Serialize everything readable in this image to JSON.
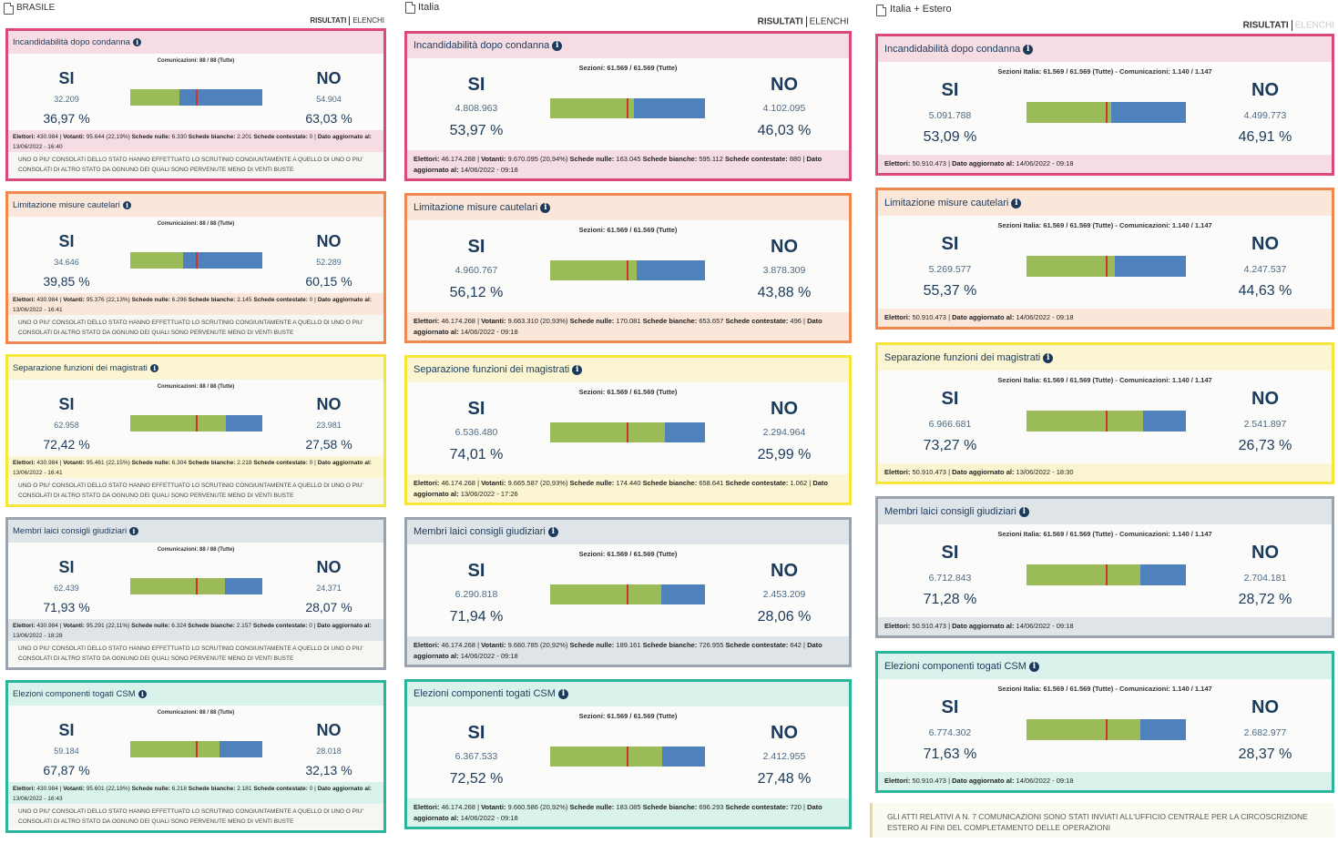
{
  "colors": {
    "incandidabilita": {
      "border": "#d9497a",
      "head": "#f6dde4"
    },
    "limitazione": {
      "border": "#f0884d",
      "head": "#fbe6da"
    },
    "separazione": {
      "border": "#f5e63c",
      "head": "#fbf6d1"
    },
    "membri": {
      "border": "#9aa3ab",
      "head": "#dfe4e8"
    },
    "elezioni": {
      "border": "#2bb59b",
      "head": "#d9f3ec"
    },
    "bar_si": "#9bbb59",
    "bar_no": "#4f81bd",
    "bar_mark": "#d0312d",
    "text": "#1b3a5c"
  },
  "tabs": {
    "risultati": "RISULTATI",
    "elenchi": "ELENCHI"
  },
  "labels": {
    "si": "SI",
    "no": "NO",
    "info_icon": "info-icon",
    "doc_icon": "document-icon"
  },
  "columns": [
    {
      "region": "BRASILE",
      "cards": [
        {
          "key": "incandidabilita",
          "title": "Incandidabilità dopo condanna",
          "comm": "Comunicazioni: 88 / 88 (Tutte)",
          "si_votes": "32.209",
          "si_pct": "36,97 %",
          "no_votes": "54.904",
          "no_pct": "63,03 %",
          "si_fraction": 0.3697,
          "elettori_label": "Elettori:",
          "elettori": "430.984",
          "votanti_label": "Votanti:",
          "votanti": "95.644 (22,19%)",
          "nulle_label": "Schede nulle:",
          "nulle": "6.330",
          "bianche_label": "Schede bianche:",
          "bianche": "2.201",
          "contestate_label": "Schede contestate:",
          "contestate": "0",
          "dato_label": "Dato aggiornato al:",
          "dato": "13/06/2022 - 16:40",
          "note": "UNO O PIU' CONSOLATI DELLO STATO HANNO EFFETTUATO LO SCRUTINIO CONGIUNTAMENTE A QUELLO DI UNO O PIU' CONSOLATI DI ALTRO STATO DA OGNUNO DEI QUALI SONO PERVENUTE MENO DI VENTI BUSTE"
        },
        {
          "key": "limitazione",
          "title": "Limitazione misure cautelari",
          "comm": "Comunicazioni: 88 / 88 (Tutte)",
          "si_votes": "34.646",
          "si_pct": "39,85 %",
          "no_votes": "52.289",
          "no_pct": "60,15 %",
          "si_fraction": 0.3985,
          "elettori_label": "Elettori:",
          "elettori": "430.984",
          "votanti_label": "Votanti:",
          "votanti": "95.376 (22,13%)",
          "nulle_label": "Schede nulle:",
          "nulle": "6.296",
          "bianche_label": "Schede bianche:",
          "bianche": "2.145",
          "contestate_label": "Schede contestate:",
          "contestate": "0",
          "dato_label": "Dato aggiornato al:",
          "dato": "13/06/2022 - 16:41",
          "note": "UNO O PIU' CONSOLATI DELLO STATO HANNO EFFETTUATO LO SCRUTINIO CONGIUNTAMENTE A QUELLO DI UNO O PIU' CONSOLATI DI ALTRO STATO DA OGNUNO DEI QUALI SONO PERVENUTE MENO DI VENTI BUSTE"
        },
        {
          "key": "separazione",
          "title": "Separazione funzioni dei magistrati",
          "comm": "Comunicazioni: 88 / 88 (Tutte)",
          "si_votes": "62.958",
          "si_pct": "72,42 %",
          "no_votes": "23.981",
          "no_pct": "27,58 %",
          "si_fraction": 0.7242,
          "elettori_label": "Elettori:",
          "elettori": "430.984",
          "votanti_label": "Votanti:",
          "votanti": "95.461 (22,15%)",
          "nulle_label": "Schede nulle:",
          "nulle": "6.304",
          "bianche_label": "Schede bianche:",
          "bianche": "2.218",
          "contestate_label": "Schede contestate:",
          "contestate": "0",
          "dato_label": "Dato aggiornato al:",
          "dato": "13/06/2022 - 16:41",
          "note": "UNO O PIU' CONSOLATI DELLO STATO HANNO EFFETTUATO LO SCRUTINIO CONGIUNTAMENTE A QUELLO DI UNO O PIU' CONSOLATI DI ALTRO STATO DA OGNUNO DEI QUALI SONO PERVENUTE MENO DI VENTI BUSTE"
        },
        {
          "key": "membri",
          "title": "Membri laici consigli giudiziari",
          "comm": "Comunicazioni: 88 / 88 (Tutte)",
          "si_votes": "62.439",
          "si_pct": "71,93 %",
          "no_votes": "24.371",
          "no_pct": "28,07 %",
          "si_fraction": 0.7193,
          "elettori_label": "Elettori:",
          "elettori": "430.984",
          "votanti_label": "Votanti:",
          "votanti": "95.291 (22,11%)",
          "nulle_label": "Schede nulle:",
          "nulle": "6.324",
          "bianche_label": "Schede bianche:",
          "bianche": "2.157",
          "contestate_label": "Schede contestate:",
          "contestate": "0",
          "dato_label": "Dato aggiornato al:",
          "dato": "13/06/2022 - 18:28",
          "note": "UNO O PIU' CONSOLATI DELLO STATO HANNO EFFETTUATO LO SCRUTINIO CONGIUNTAMENTE A QUELLO DI UNO O PIU' CONSOLATI DI ALTRO STATO DA OGNUNO DEI QUALI SONO PERVENUTE MENO DI VENTI BUSTE"
        },
        {
          "key": "elezioni",
          "title": "Elezioni componenti togati CSM",
          "comm": "Comunicazioni: 88 / 88 (Tutte)",
          "si_votes": "59.184",
          "si_pct": "67,87 %",
          "no_votes": "28.018",
          "no_pct": "32,13 %",
          "si_fraction": 0.6787,
          "elettori_label": "Elettori:",
          "elettori": "430.984",
          "votanti_label": "Votanti:",
          "votanti": "95.601 (22,18%)",
          "nulle_label": "Schede nulle:",
          "nulle": "6.218",
          "bianche_label": "Schede bianche:",
          "bianche": "2.181",
          "contestate_label": "Schede contestate:",
          "contestate": "0",
          "dato_label": "Dato aggiornato al:",
          "dato": "13/06/2022 - 16:43",
          "note": "UNO O PIU' CONSOLATI DELLO STATO HANNO EFFETTUATO LO SCRUTINIO CONGIUNTAMENTE A QUELLO DI UNO O PIU' CONSOLATI DI ALTRO STATO DA OGNUNO DEI QUALI SONO PERVENUTE MENO DI VENTI BUSTE"
        }
      ]
    },
    {
      "region": "Italia",
      "cards": [
        {
          "key": "incandidabilita",
          "title": "Incandidabilità dopo condanna",
          "comm": "Sezioni: 61.569 / 61.569 (Tutte)",
          "si_votes": "4.808.963",
          "si_pct": "53,97 %",
          "no_votes": "4.102.095",
          "no_pct": "46,03 %",
          "si_fraction": 0.5397,
          "elettori_label": "Elettori:",
          "elettori": "46.174.268",
          "votanti_label": "Votanti:",
          "votanti": "9.670.095 (20,94%)",
          "nulle_label": "Schede nulle:",
          "nulle": "163.045",
          "bianche_label": "Schede bianche:",
          "bianche": "595.112",
          "contestate_label": "Schede contestate:",
          "contestate": "880",
          "dato_label": "Dato aggiornato al:",
          "dato": "14/06/2022 - 09:18"
        },
        {
          "key": "limitazione",
          "title": "Limitazione misure cautelari",
          "comm": "Sezioni: 61.569 / 61.569 (Tutte)",
          "si_votes": "4.960.767",
          "si_pct": "56,12 %",
          "no_votes": "3.878.309",
          "no_pct": "43,88 %",
          "si_fraction": 0.5612,
          "elettori_label": "Elettori:",
          "elettori": "46.174.268",
          "votanti_label": "Votanti:",
          "votanti": "9.663.310 (20,93%)",
          "nulle_label": "Schede nulle:",
          "nulle": "170.081",
          "bianche_label": "Schede bianche:",
          "bianche": "653.657",
          "contestate_label": "Schede contestate:",
          "contestate": "496",
          "dato_label": "Dato aggiornato al:",
          "dato": "14/06/2022 - 09:18"
        },
        {
          "key": "separazione",
          "title": "Separazione funzioni dei magistrati",
          "comm": "Sezioni: 61.569 / 61.569 (Tutte)",
          "si_votes": "6.536.480",
          "si_pct": "74,01 %",
          "no_votes": "2.294.964",
          "no_pct": "25,99 %",
          "si_fraction": 0.7401,
          "elettori_label": "Elettori:",
          "elettori": "46.174.268",
          "votanti_label": "Votanti:",
          "votanti": "9.665.587 (20,93%)",
          "nulle_label": "Schede nulle:",
          "nulle": "174.440",
          "bianche_label": "Schede bianche:",
          "bianche": "658.641",
          "contestate_label": "Schede contestate:",
          "contestate": "1.062",
          "dato_label": "Dato aggiornato al:",
          "dato": "13/06/2022 - 17:26"
        },
        {
          "key": "membri",
          "title": "Membri laici consigli giudiziari",
          "comm": "Sezioni: 61.569 / 61.569 (Tutte)",
          "si_votes": "6.290.818",
          "si_pct": "71,94 %",
          "no_votes": "2.453.209",
          "no_pct": "28,06 %",
          "si_fraction": 0.7194,
          "elettori_label": "Elettori:",
          "elettori": "46.174.268",
          "votanti_label": "Votanti:",
          "votanti": "9.660.785 (20,92%)",
          "nulle_label": "Schede nulle:",
          "nulle": "189.161",
          "bianche_label": "Schede bianche:",
          "bianche": "726.955",
          "contestate_label": "Schede contestate:",
          "contestate": "642",
          "dato_label": "Dato aggiornato al:",
          "dato": "14/06/2022 - 09:18"
        },
        {
          "key": "elezioni",
          "title": "Elezioni componenti togati CSM",
          "comm": "Sezioni: 61.569 / 61.569 (Tutte)",
          "si_votes": "6.367.533",
          "si_pct": "72,52 %",
          "no_votes": "2.412.955",
          "no_pct": "27,48 %",
          "si_fraction": 0.7252,
          "elettori_label": "Elettori:",
          "elettori": "46.174.268",
          "votanti_label": "Votanti:",
          "votanti": "9.660.586 (20,92%)",
          "nulle_label": "Schede nulle:",
          "nulle": "183.085",
          "bianche_label": "Schede bianche:",
          "bianche": "696.293",
          "contestate_label": "Schede contestate:",
          "contestate": "720",
          "dato_label": "Dato aggiornato al:",
          "dato": "14/06/2022 - 09:18"
        }
      ]
    },
    {
      "region": "Italia + Estero",
      "cards": [
        {
          "key": "incandidabilita",
          "title": "Incandidabilità dopo condanna",
          "comm": "Sezioni Italia: 61.569 / 61.569 (Tutte) - Comunicazioni: 1.140 / 1.147",
          "si_votes": "5.091.788",
          "si_pct": "53,09 %",
          "no_votes": "4.499.773",
          "no_pct": "46,91 %",
          "si_fraction": 0.5309,
          "elettori_label": "Elettori:",
          "elettori": "50.910.473",
          "dato_label": "Dato aggiornato al:",
          "dato": "14/06/2022 - 09:18"
        },
        {
          "key": "limitazione",
          "title": "Limitazione misure cautelari",
          "comm": "Sezioni Italia: 61.569 / 61.569 (Tutte) - Comunicazioni: 1.140 / 1.147",
          "si_votes": "5.269.577",
          "si_pct": "55,37 %",
          "no_votes": "4.247.537",
          "no_pct": "44,63 %",
          "si_fraction": 0.5537,
          "elettori_label": "Elettori:",
          "elettori": "50.910.473",
          "dato_label": "Dato aggiornato al:",
          "dato": "14/06/2022 - 09:18"
        },
        {
          "key": "separazione",
          "title": "Separazione funzioni dei magistrati",
          "comm": "Sezioni Italia: 61.569 / 61.569 (Tutte) - Comunicazioni: 1.140 / 1.147",
          "si_votes": "6.966.681",
          "si_pct": "73,27 %",
          "no_votes": "2.541.897",
          "no_pct": "26,73 %",
          "si_fraction": 0.7327,
          "elettori_label": "Elettori:",
          "elettori": "50.910.473",
          "dato_label": "Dato aggiornato al:",
          "dato": "13/06/2022 - 18:30"
        },
        {
          "key": "membri",
          "title": "Membri laici consigli giudiziari",
          "comm": "Sezioni Italia: 61.569 / 61.569 (Tutte) - Comunicazioni: 1.140 / 1.147",
          "si_votes": "6.712.843",
          "si_pct": "71,28 %",
          "no_votes": "2.704.181",
          "no_pct": "28,72 %",
          "si_fraction": 0.7128,
          "elettori_label": "Elettori:",
          "elettori": "50.910.473",
          "dato_label": "Dato aggiornato al:",
          "dato": "14/06/2022 - 09:18"
        },
        {
          "key": "elezioni",
          "title": "Elezioni componenti togati CSM",
          "comm": "Sezioni Italia: 61.569 / 61.569 (Tutte) - Comunicazioni: 1.140 / 1.147",
          "si_votes": "6.774.302",
          "si_pct": "71,63 %",
          "no_votes": "2.682.977",
          "no_pct": "28,37 %",
          "si_fraction": 0.7163,
          "elettori_label": "Elettori:",
          "elettori": "50.910.473",
          "dato_label": "Dato aggiornato al:",
          "dato": "14/06/2022 - 09:18"
        }
      ],
      "bottom_note": "GLI ATTI RELATIVI A N. 7 COMUNICAZIONI SONO STATI INVIATI ALL'UFFICIO CENTRALE PER LA CIRCOSCRIZIONE ESTERO AI FINI DEL COMPLETAMENTO DELLE OPERAZIONI"
    }
  ]
}
